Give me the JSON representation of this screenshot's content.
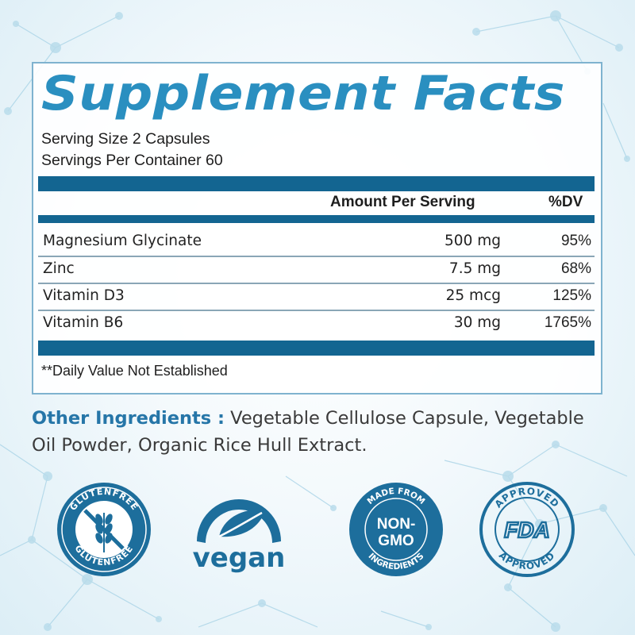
{
  "title": "Supplement Facts",
  "serving_size": "Serving Size 2 Capsules",
  "servings_per_container": "Servings Per Container 60",
  "header": {
    "amount": "Amount Per Serving",
    "dv": "%DV"
  },
  "rows": [
    {
      "name": "Magnesium Glycinate",
      "amount": "500 mg",
      "dv": "95%"
    },
    {
      "name": "Zinc",
      "amount": "7.5 mg",
      "dv": "68%"
    },
    {
      "name": "Vitamin D3",
      "amount": "25 mcg",
      "dv": "125%"
    },
    {
      "name": "Vitamin B6",
      "amount": "30 mg",
      "dv": "1765%"
    }
  ],
  "note": "**Daily Value Not Established",
  "ingredients": {
    "label": "Other Ingredients :",
    "text": " Vegetable Cellulose Capsule, Vegetable Oil Powder, Organic Rice Hull Extract."
  },
  "badges": {
    "gluten_free": "GLUTENFREE",
    "vegan": "vegan",
    "non_gmo_top": "MADE FROM",
    "non_gmo_line1": "NON-",
    "non_gmo_line2": "GMO",
    "non_gmo_bottom": "INGREDIENTS",
    "fda_top": "APPROVED",
    "fda_center": "FDA",
    "fda_bottom": "APPROVED"
  },
  "colors": {
    "title": "#2a8fc0",
    "bar": "#136591",
    "badge": "#1d6e9c",
    "label": "#2676a8"
  }
}
